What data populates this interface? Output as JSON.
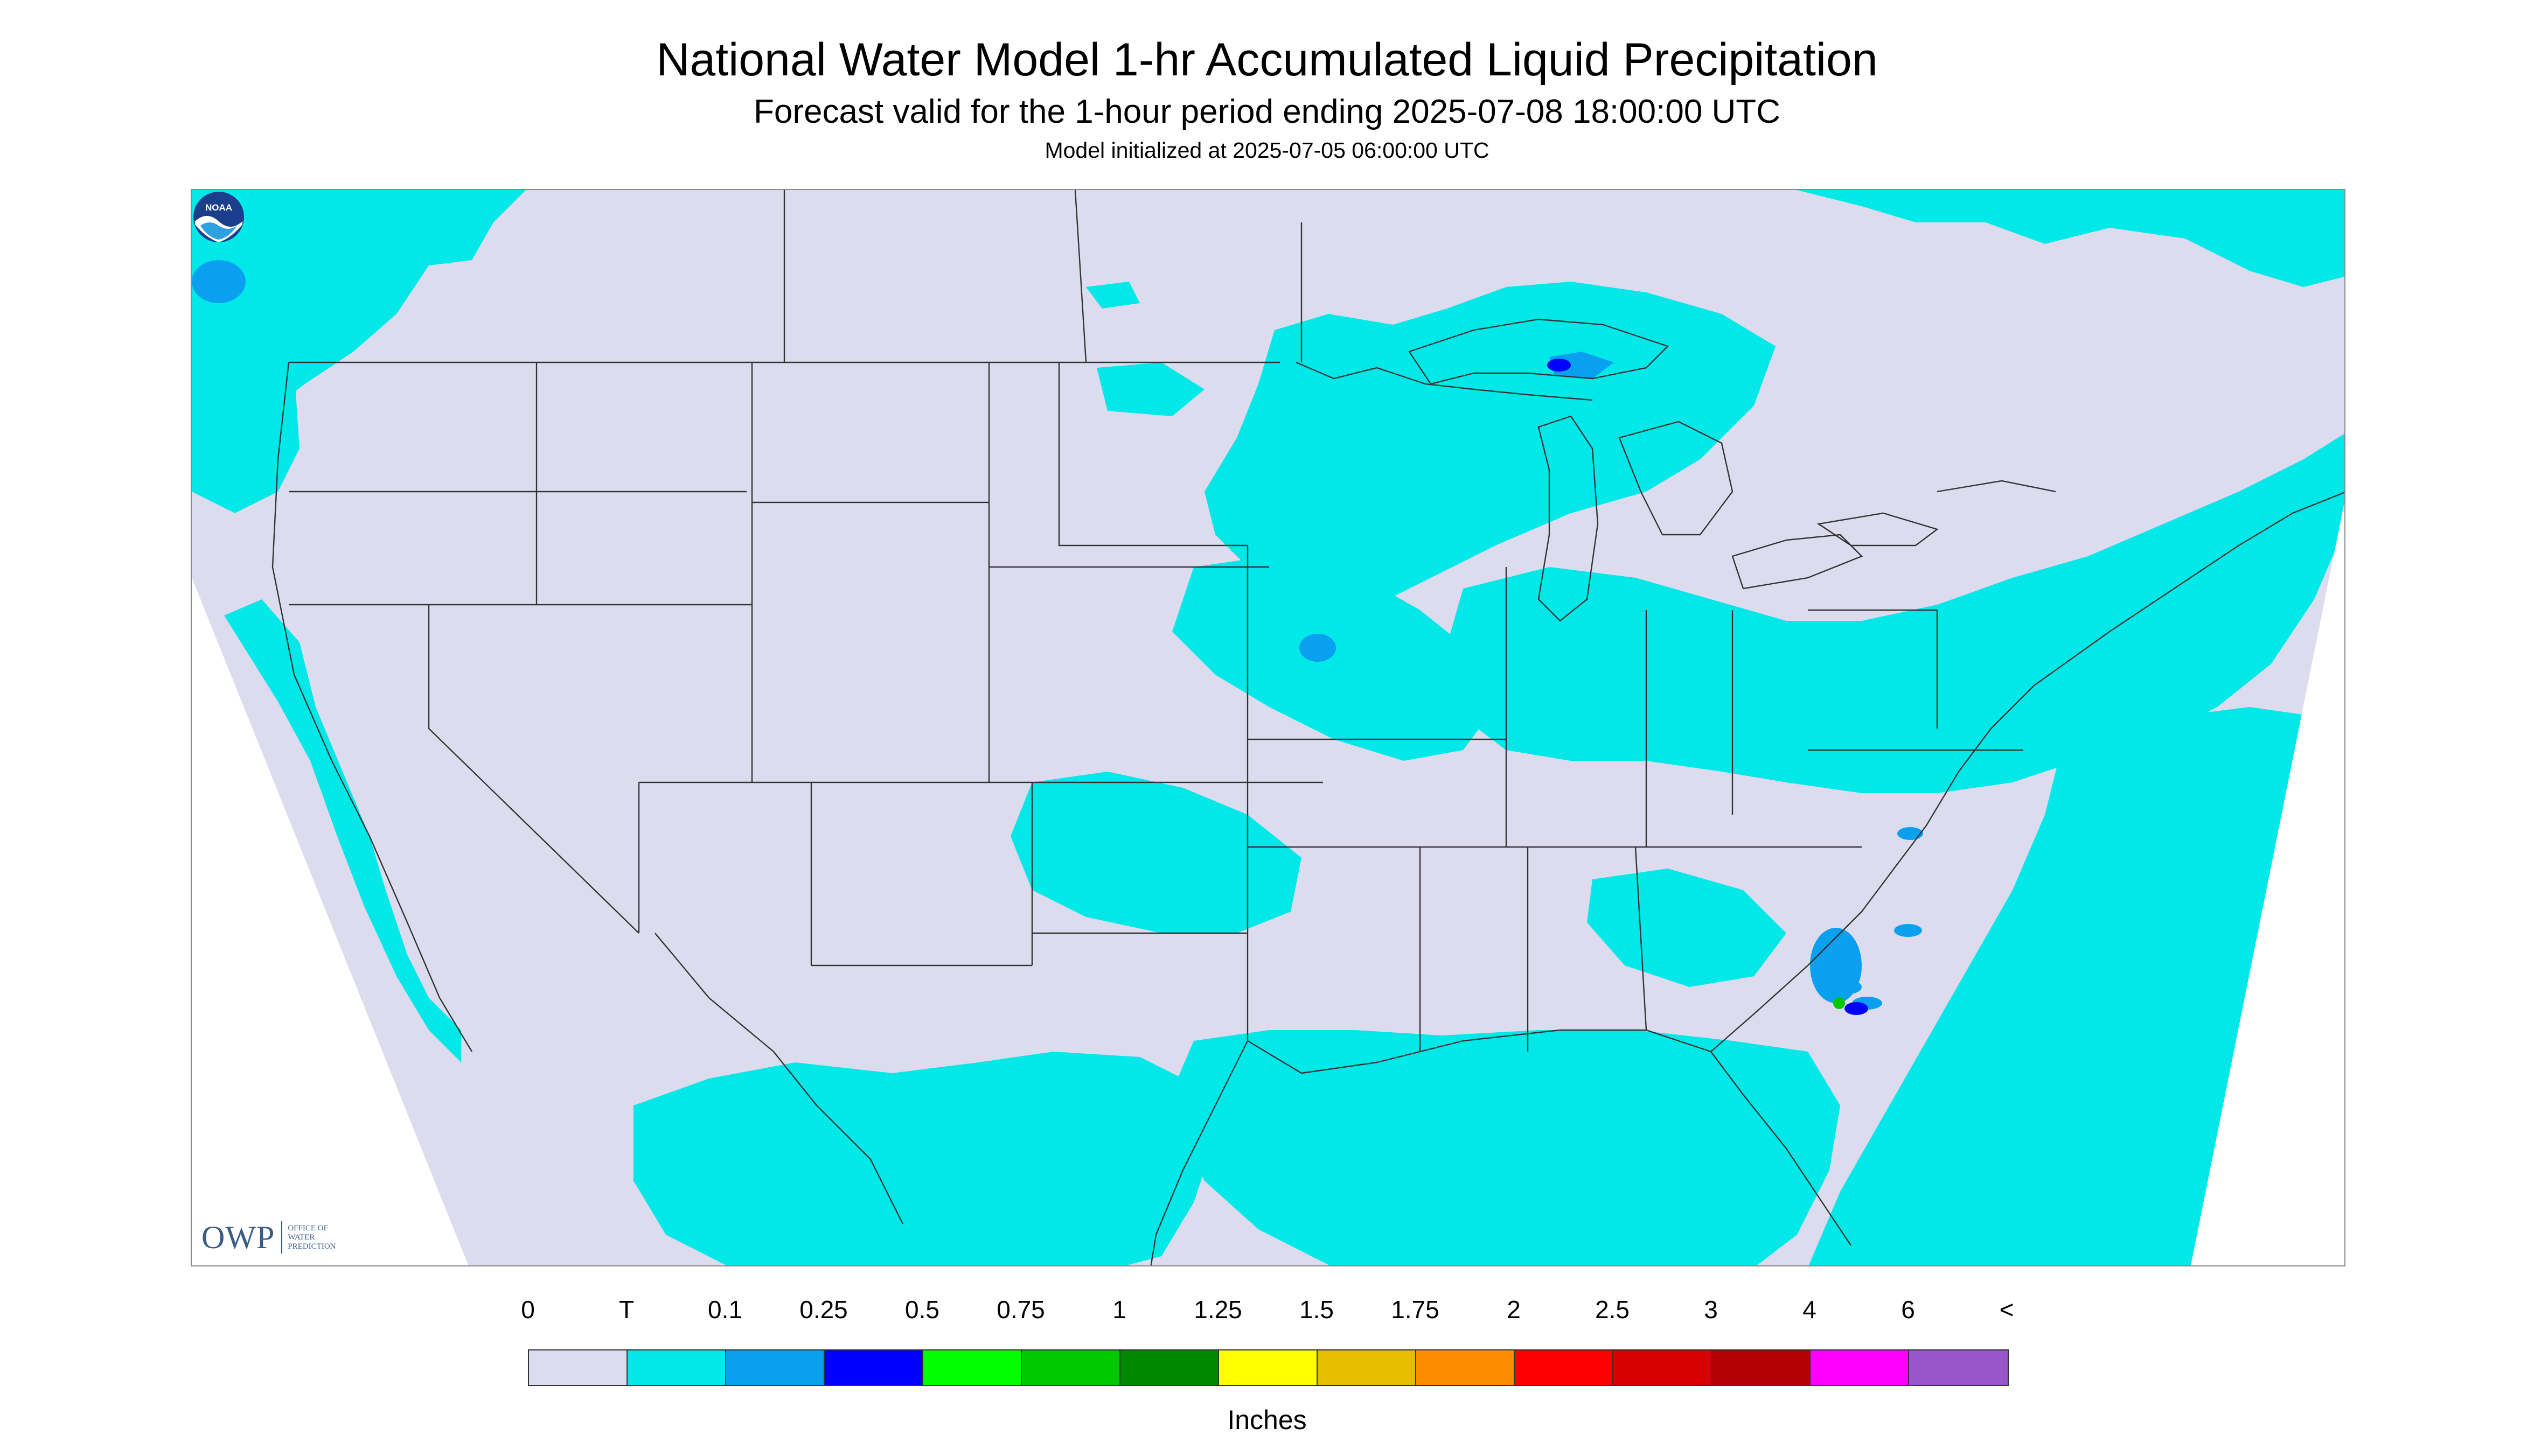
{
  "header": {
    "title": "National Water Model 1-hr Accumulated Liquid Precipitation",
    "subtitle": "Forecast valid for the 1-hour period ending 2025-07-08 18:00:00 UTC",
    "init_line": "Model initialized at 2025-07-05 06:00:00 UTC"
  },
  "map": {
    "region": "Contiguous United States",
    "background_color": "#dcdcee",
    "outside_color": "#ffffff",
    "boundary_color": "#333333"
  },
  "logos": {
    "owp_mark": "OWP",
    "owp_sub": "OFFICE OF\nWATER\nPREDICTION",
    "noaa_mark": "NOAA"
  },
  "legend": {
    "labels": [
      "0",
      "T",
      "0.1",
      "0.25",
      "0.5",
      "0.75",
      "1",
      "1.25",
      "1.5",
      "1.75",
      "2",
      "2.5",
      "3",
      "4",
      "6",
      "<"
    ],
    "colors": [
      "#dcdcee",
      "#00e8e8",
      "#0aa0f0",
      "#0000ff",
      "#00ff00",
      "#00c800",
      "#008800",
      "#ffff00",
      "#e6bf00",
      "#ff8c00",
      "#ff0000",
      "#d80000",
      "#b40000",
      "#ff00ff",
      "#9955c9"
    ],
    "units": "Inches"
  }
}
